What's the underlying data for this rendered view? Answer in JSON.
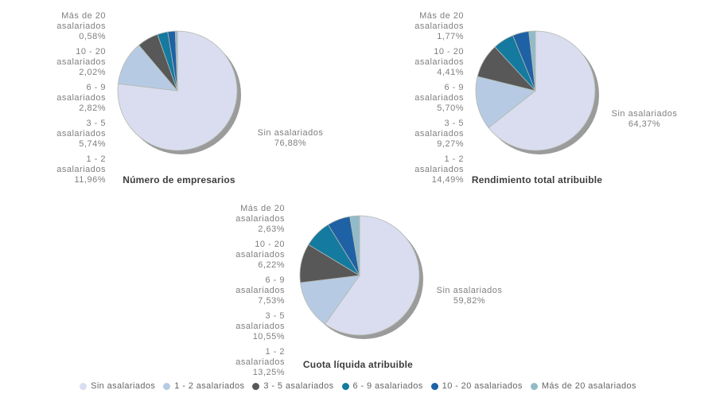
{
  "chart_data": [
    {
      "type": "pie",
      "title": "Número de empresarios",
      "categories": [
        "Sin asalariados",
        "1 - 2 asalariados",
        "3 - 5 asalariados",
        "6 - 9 asalariados",
        "10 - 20 asalariados",
        "Más de 20 asalariados"
      ],
      "values": [
        76.88,
        11.96,
        5.74,
        2.82,
        2.02,
        0.58
      ],
      "colors": [
        "#d9ddef",
        "#b6cbe3",
        "#585858",
        "#147a9f",
        "#1f61a5",
        "#92bbc9"
      ],
      "value_labels": [
        "76,88%",
        "11,96%",
        "5,74%",
        "2,82%",
        "2,02%",
        "0,58%"
      ]
    },
    {
      "type": "pie",
      "title": "Rendimiento total atribuible",
      "categories": [
        "Sin asalariados",
        "1 - 2 asalariados",
        "3 - 5 asalariados",
        "6 - 9 asalariados",
        "10 - 20 asalariados",
        "Más de 20 asalariados"
      ],
      "values": [
        64.37,
        14.49,
        9.27,
        5.7,
        4.41,
        1.77
      ],
      "colors": [
        "#d9ddef",
        "#b6cbe3",
        "#585858",
        "#147a9f",
        "#1f61a5",
        "#92bbc9"
      ],
      "value_labels": [
        "64,37%",
        "14,49%",
        "9,27%",
        "5,70%",
        "4,41%",
        "1,77%"
      ]
    },
    {
      "type": "pie",
      "title": "Cuota líquida atribuible",
      "categories": [
        "Sin asalariados",
        "1 - 2 asalariados",
        "3 - 5 asalariados",
        "6 - 9 asalariados",
        "10 - 20 asalariados",
        "Más de 20 asalariados"
      ],
      "values": [
        59.82,
        13.25,
        10.55,
        7.53,
        6.22,
        2.63
      ],
      "colors": [
        "#d9ddef",
        "#b6cbe3",
        "#585858",
        "#147a9f",
        "#1f61a5",
        "#92bbc9"
      ],
      "value_labels": [
        "59,82%",
        "13,25%",
        "10,55%",
        "7,53%",
        "6,22%",
        "2,63%"
      ]
    }
  ],
  "legend": {
    "position": "bottom",
    "items": [
      "Sin asalariados",
      "1 - 2 asalariados",
      "3 - 5 asalariados",
      "6 - 9 asalariados",
      "10 - 20 asalariados",
      "Más de 20 asalariados"
    ]
  },
  "style": {
    "background": "#ffffff",
    "shadow_color": "#9b9b9b",
    "slice_stroke": "#b3b8b0",
    "callout_text_color": "#7f7f7f",
    "title_color": "#3d3d3d",
    "legend_text_color": "#666666"
  }
}
